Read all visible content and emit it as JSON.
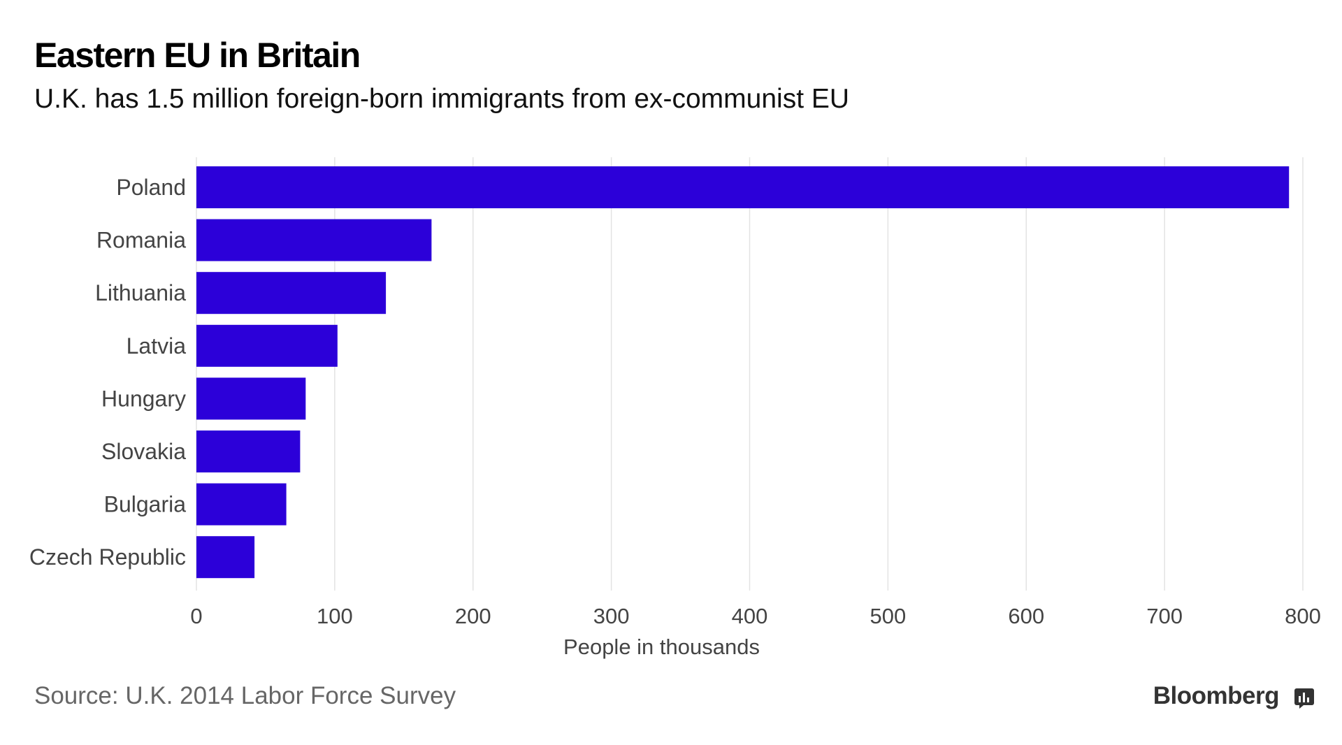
{
  "header": {
    "title": "Eastern EU in Britain",
    "subtitle": "U.K. has 1.5 million foreign-born immigrants from ex-communist EU"
  },
  "footer": {
    "source": "Source: U.K. 2014 Labor Force Survey",
    "brand": "Bloomberg",
    "brand_icon": "bloomberg-chart-icon"
  },
  "colors": {
    "bar": "#2c00d9",
    "grid": "#e3e3e3",
    "label": "#444444"
  },
  "chart_data": {
    "type": "bar",
    "orientation": "horizontal",
    "title": "Eastern EU in Britain",
    "subtitle": "U.K. has 1.5 million foreign-born immigrants from ex-communist EU",
    "categories": [
      "Poland",
      "Romania",
      "Lithuania",
      "Latvia",
      "Hungary",
      "Slovakia",
      "Bulgaria",
      "Czech Republic"
    ],
    "values": [
      790,
      170,
      137,
      102,
      79,
      75,
      65,
      42
    ],
    "xlabel": "People in thousands",
    "ylabel": "",
    "xlim": [
      0,
      800
    ],
    "xticks": [
      0,
      100,
      200,
      300,
      400,
      500,
      600,
      700,
      800
    ],
    "grid": true
  }
}
